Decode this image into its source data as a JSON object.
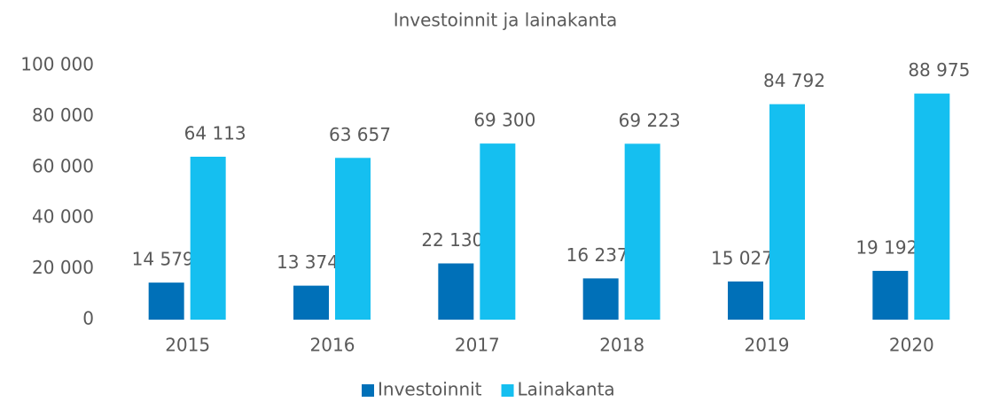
{
  "chart_data": {
    "type": "bar",
    "title": "Investoinnit ja lainakanta",
    "categories": [
      "2015",
      "2016",
      "2017",
      "2018",
      "2019",
      "2020"
    ],
    "series": [
      {
        "name": "Investoinnit",
        "color": "#0070b8",
        "values": [
          14579,
          13374,
          22130,
          16237,
          15027,
          19192
        ],
        "value_labels": [
          "14 579",
          "13 374",
          "22 130",
          "16 237",
          "15 027",
          "19 192"
        ]
      },
      {
        "name": "Lainakanta",
        "color": "#15bff0",
        "values": [
          64113,
          63657,
          69300,
          69223,
          84792,
          88975
        ],
        "value_labels": [
          "64 113",
          "63 657",
          "69 300",
          "69 223",
          "84 792",
          "88 975"
        ]
      }
    ],
    "ylim": [
      0,
      100000
    ],
    "yticks": [
      0,
      {
        "value": 20000,
        "label": "20 000"
      },
      {
        "value": 40000,
        "label": "40 000"
      },
      {
        "value": 60000,
        "label": "60 000"
      },
      {
        "value": 80000,
        "label": "80 000"
      },
      {
        "value": 100000,
        "label": "100 000"
      }
    ],
    "grid": false,
    "legend": "bottom"
  }
}
